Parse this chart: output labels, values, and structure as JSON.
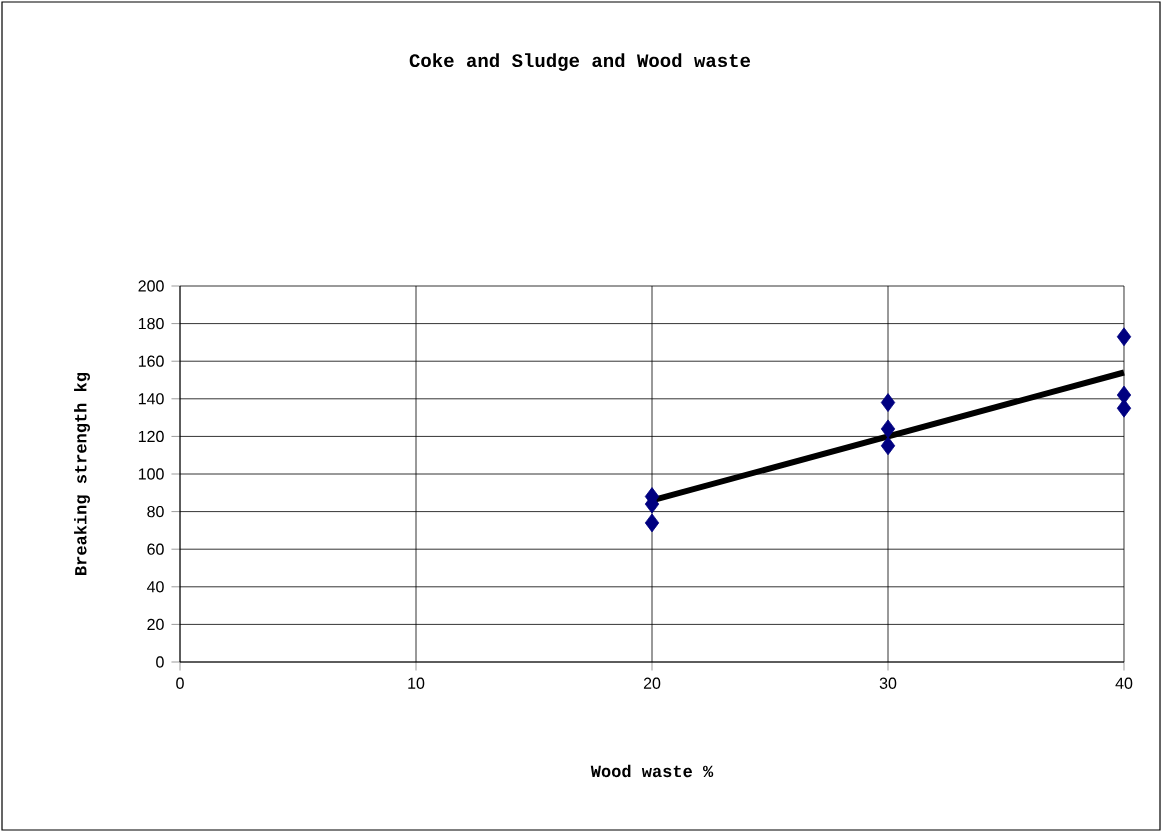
{
  "chart_data": {
    "type": "scatter",
    "title": "Coke and Sludge and Wood waste",
    "xlabel": "Wood waste %",
    "ylabel": "Breaking strength kg",
    "series": [
      {
        "color": "#000080",
        "marker": "diamond",
        "x": [
          20,
          20,
          20,
          30,
          30,
          30,
          40,
          40,
          40
        ],
        "values": [
          88,
          84,
          74,
          138,
          124,
          115,
          173,
          142,
          135
        ]
      },
      {
        "type": "line",
        "color": "#000000",
        "marker": "none",
        "x": [
          20,
          40
        ],
        "values": [
          86,
          154
        ]
      }
    ],
    "xlim": [
      0,
      40
    ],
    "ylim": [
      0,
      200
    ],
    "xticks": [
      0,
      10,
      20,
      30,
      40
    ],
    "yticks": [
      0,
      20,
      40,
      60,
      80,
      100,
      120,
      140,
      160,
      180,
      200
    ],
    "grid": true
  }
}
